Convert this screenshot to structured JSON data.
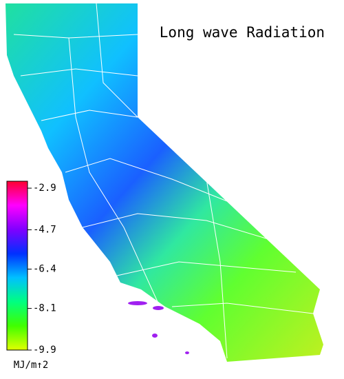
{
  "title": "Long wave Radiation",
  "colorbar": {
    "ticks": [
      -2.9,
      -4.7,
      -6.4,
      -8.1,
      -9.9
    ],
    "lim": [
      -2.6,
      -9.9
    ],
    "unit": "MJ/m↑2",
    "colors": [
      "#ff0030",
      "#ff00ff",
      "#8000ff",
      "#0030ff",
      "#00c0ff",
      "#00ff80",
      "#40ff00",
      "#e0ff00"
    ]
  }
}
